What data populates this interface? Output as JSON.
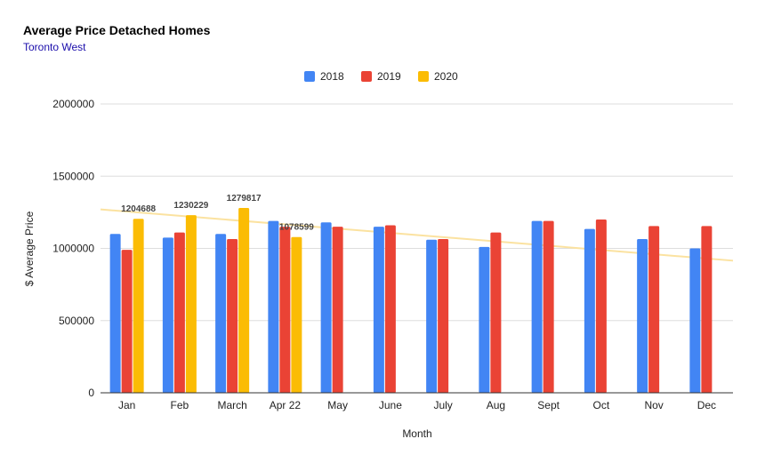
{
  "chart_data": {
    "type": "bar",
    "title": "Average Price Detached Homes",
    "subtitle": "Toronto West",
    "xlabel": "Month",
    "ylabel": "$ Average Price",
    "ylim": [
      0,
      2000000
    ],
    "yticks": [
      0,
      500000,
      1000000,
      1500000,
      2000000
    ],
    "grid": true,
    "legend_position": "top",
    "categories": [
      "Jan",
      "Feb",
      "March",
      "Apr 22",
      "May",
      "June",
      "July",
      "Aug",
      "Sept",
      "Oct",
      "Nov",
      "Dec"
    ],
    "series": [
      {
        "name": "2018",
        "color": "#4285F4",
        "values": [
          1100000,
          1075000,
          1100000,
          1190000,
          1180000,
          1150000,
          1060000,
          1010000,
          1190000,
          1135000,
          1065000,
          1000000
        ]
      },
      {
        "name": "2019",
        "color": "#EA4335",
        "values": [
          990000,
          1110000,
          1065000,
          1150000,
          1150000,
          1160000,
          1065000,
          1110000,
          1190000,
          1200000,
          1155000,
          1155000
        ]
      },
      {
        "name": "2020",
        "color": "#FBBC04",
        "values": [
          1204688,
          1230229,
          1279817,
          1078599,
          null,
          null,
          null,
          null,
          null,
          null,
          null,
          null
        ],
        "labels": [
          "1204688",
          "1230229",
          "1279817",
          "1078599",
          "",
          "",
          "",
          "",
          "",
          "",
          "",
          ""
        ]
      }
    ],
    "trendline": {
      "series": "2020",
      "color": "#FBE2A0",
      "start": 1270000,
      "end": 915000
    }
  }
}
